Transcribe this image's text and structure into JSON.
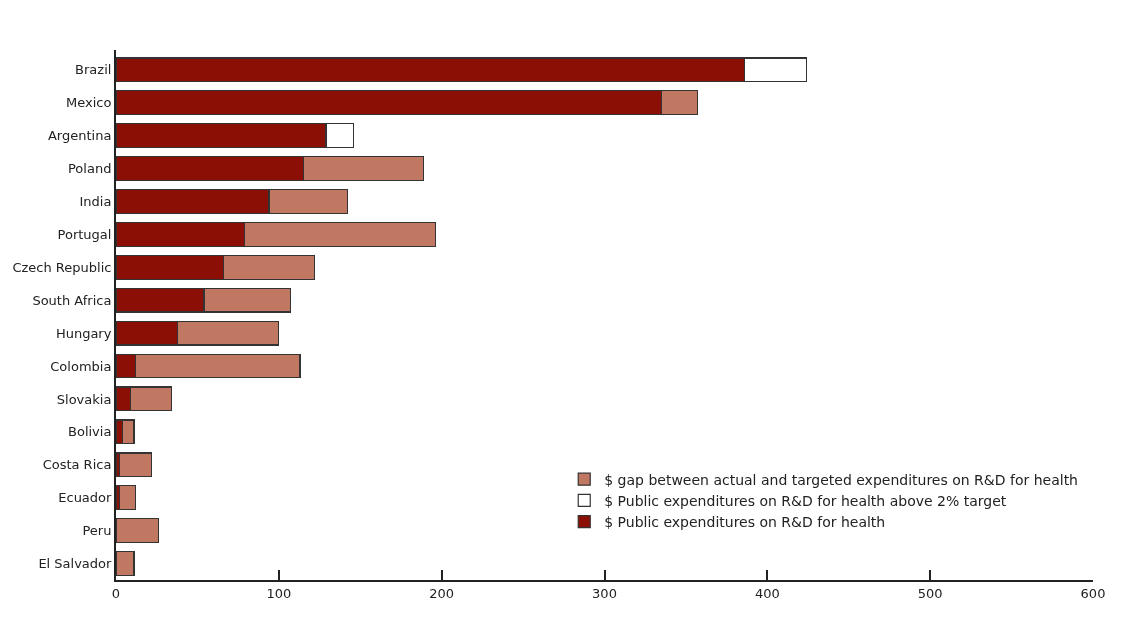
{
  "chart_data": {
    "type": "bar",
    "orientation": "horizontal",
    "stacked": true,
    "categories": [
      "Brazil",
      "Mexico",
      "Argentina",
      "Poland",
      "India",
      "Portugal",
      "Czech Republic",
      "South Africa",
      "Hungary",
      "Colombia",
      "Slovakia",
      "Bolivia",
      "Costa Rica",
      "Ecuador",
      "Peru",
      "El Salvador"
    ],
    "series": [
      {
        "name": "$ Public expenditures on R&D for health",
        "color": "#8b0f04",
        "values": [
          386,
          335,
          129,
          115,
          94,
          79,
          66,
          54,
          38,
          12,
          9,
          4,
          2,
          2,
          null,
          null
        ]
      },
      {
        "name": "$ Public expenditures on R&D for health above 2% target",
        "color": "#ffffff",
        "values": [
          38,
          null,
          17,
          null,
          null,
          null,
          null,
          null,
          null,
          null,
          null,
          null,
          null,
          null,
          null,
          null
        ]
      },
      {
        "name": "$ gap between actual and targeted expenditures on R&D for health",
        "color": "#c17862",
        "values": [
          null,
          22,
          null,
          74,
          48,
          117,
          56,
          53,
          62,
          101,
          25,
          7,
          20,
          10,
          26,
          11
        ]
      }
    ],
    "xlim": [
      0,
      600
    ],
    "xticks": [
      0,
      100,
      200,
      300,
      400,
      500,
      600
    ],
    "legend": "bottom right"
  }
}
